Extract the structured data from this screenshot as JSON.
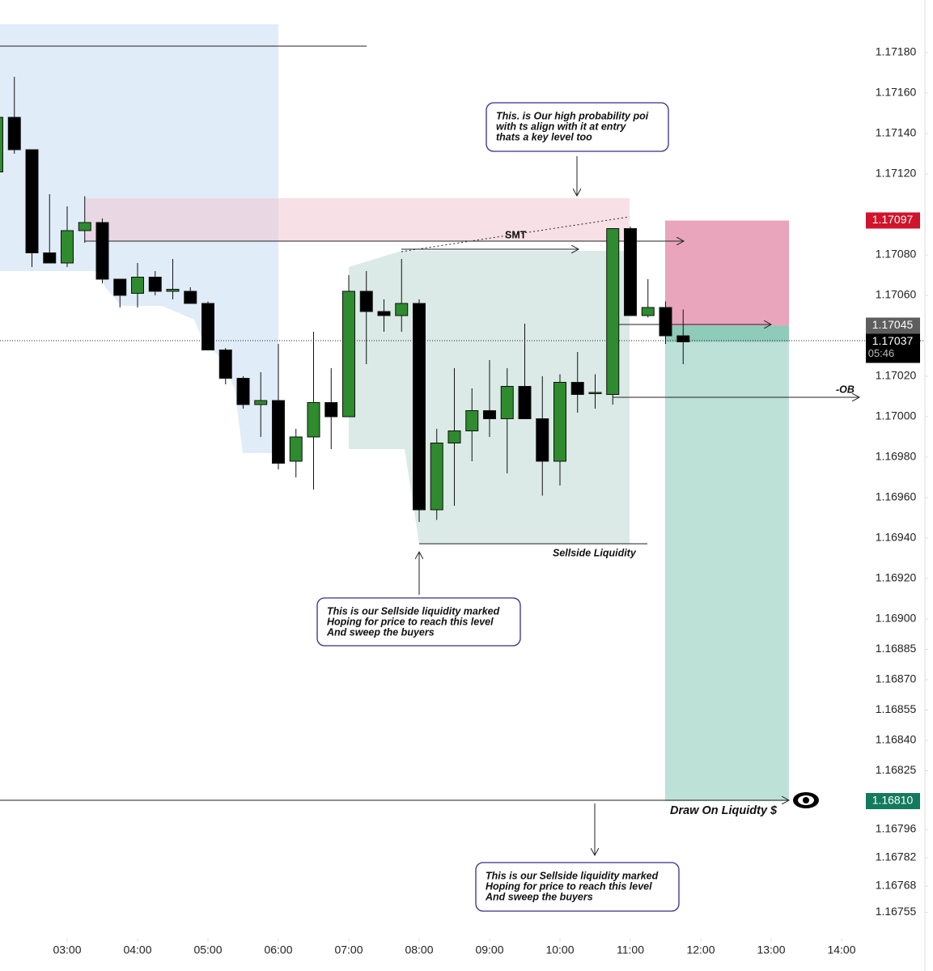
{
  "chart_data": {
    "type": "candlestick",
    "x": [
      2,
      2.25,
      2.5,
      2.75,
      3,
      3.25,
      3.5,
      3.75,
      4,
      4.25,
      4.5,
      4.75,
      5,
      5.25,
      5.5,
      5.75,
      6,
      6.25,
      6.5,
      6.75,
      7,
      7.25,
      7.5,
      7.75,
      8,
      8.25,
      8.5,
      8.75,
      9,
      9.25,
      9.5,
      9.75,
      10,
      10.25,
      10.5,
      10.75,
      11,
      11.25,
      11.5,
      11.75
    ],
    "open": [
      1.17121,
      1.17148,
      1.17132,
      1.17081,
      1.17076,
      1.17092,
      1.17096,
      1.17068,
      1.17061,
      1.17069,
      1.17062,
      1.17062,
      1.17056,
      1.17033,
      1.17019,
      1.17006,
      1.17008,
      1.16978,
      1.1699,
      1.17007,
      1.17,
      1.17062,
      1.17052,
      1.1705,
      1.17056,
      1.16954,
      1.16987,
      1.16993,
      1.17003,
      1.16999,
      1.17015,
      1.16999,
      1.16978,
      1.17017,
      1.17012,
      1.17011,
      1.17093,
      1.1705,
      1.17054,
      1.1704
    ],
    "high": [
      1.1715,
      1.17168,
      1.17132,
      1.1711,
      1.17104,
      1.17109,
      1.17098,
      1.17068,
      1.17076,
      1.17072,
      1.17078,
      1.17064,
      1.17057,
      1.17034,
      1.1702,
      1.17022,
      1.17036,
      1.16994,
      1.17042,
      1.17024,
      1.1707,
      1.17072,
      1.17058,
      1.17078,
      1.17058,
      1.16994,
      1.17024,
      1.17014,
      1.17028,
      1.17024,
      1.17046,
      1.1702,
      1.17021,
      1.17032,
      1.17021,
      1.17093,
      1.17094,
      1.17068,
      1.17057,
      1.17053
    ],
    "low": [
      1.17121,
      1.1713,
      1.17074,
      1.17076,
      1.17074,
      1.17086,
      1.17066,
      1.17054,
      1.17054,
      1.1706,
      1.17058,
      1.17056,
      1.17033,
      1.17016,
      1.17004,
      1.1699,
      1.16974,
      1.1697,
      1.16964,
      1.16984,
      1.17,
      1.17026,
      1.17042,
      1.17042,
      1.16948,
      1.16949,
      1.16956,
      1.16978,
      1.1699,
      1.16972,
      1.16999,
      1.16961,
      1.16966,
      1.17002,
      1.17004,
      1.17006,
      1.1705,
      1.17049,
      1.17036,
      1.17026
    ],
    "close": [
      1.17148,
      1.17132,
      1.17081,
      1.17076,
      1.17092,
      1.17096,
      1.17068,
      1.1706,
      1.17069,
      1.17062,
      1.17063,
      1.17056,
      1.17033,
      1.17019,
      1.17006,
      1.17008,
      1.16977,
      1.1699,
      1.17007,
      1.17,
      1.17062,
      1.17052,
      1.1705,
      1.17056,
      1.16954,
      1.16987,
      1.16993,
      1.17003,
      1.16999,
      1.17015,
      1.16999,
      1.16978,
      1.17017,
      1.17011,
      1.17012,
      1.17093,
      1.1705,
      1.17054,
      1.1704,
      1.17037
    ],
    "up_color": "#2e8b2e",
    "down_color": "#000000",
    "xlim": [
      2.046,
      15.184
    ],
    "xticks": [
      {
        "value": 3,
        "label": "03:00"
      },
      {
        "value": 4,
        "label": "04:00"
      },
      {
        "value": 5,
        "label": "05:00"
      },
      {
        "value": 6,
        "label": "06:00"
      },
      {
        "value": 7,
        "label": "07:00"
      },
      {
        "value": 8,
        "label": "08:00"
      },
      {
        "value": 9,
        "label": "09:00"
      },
      {
        "value": 10,
        "label": "10:00"
      },
      {
        "value": 11,
        "label": "11:00"
      },
      {
        "value": 12,
        "label": "12:00"
      },
      {
        "value": 13,
        "label": "13:00"
      },
      {
        "value": 14,
        "label": "14:00"
      }
    ],
    "ylim": [
      1.16742,
      1.17194
    ],
    "yticks": [
      {
        "value": 1.1718,
        "label": "1.17180"
      },
      {
        "value": 1.1716,
        "label": "1.17160"
      },
      {
        "value": 1.1714,
        "label": "1.17140"
      },
      {
        "value": 1.1712,
        "label": "1.17120"
      },
      {
        "value": 1.1708,
        "label": "1.17080"
      },
      {
        "value": 1.1706,
        "label": "1.17060"
      },
      {
        "value": 1.1702,
        "label": "1.17020"
      },
      {
        "value": 1.17,
        "label": "1.17000"
      },
      {
        "value": 1.1698,
        "label": "1.16980"
      },
      {
        "value": 1.1696,
        "label": "1.16960"
      },
      {
        "value": 1.1694,
        "label": "1.16940"
      },
      {
        "value": 1.1692,
        "label": "1.16920"
      },
      {
        "value": 1.169,
        "label": "1.16900"
      },
      1.16885,
      {
        "value": 1.1687,
        "label": "1.16870"
      },
      1.16855,
      {
        "value": 1.1684,
        "label": "1.16840"
      },
      1.16825,
      1.16796,
      1.16782,
      1.16768,
      1.16755
    ],
    "price_labels": [
      {
        "value": 1.17097,
        "color": "#d0142c"
      },
      {
        "value": 1.17045,
        "color": "#5e5e5e"
      },
      {
        "value": 1.17037,
        "color": "#000000",
        "countdown": "05:46"
      },
      {
        "value": 1.1681,
        "label": "1.16810",
        "color": "#137a5e"
      }
    ],
    "annotations": {
      "poi_note": [
        "This. is Our high probability poi",
        "with ts align with it at entry",
        "thats a key level too"
      ],
      "smt": "SMT",
      "ob": "-OB",
      "sellside": "Sellside Liquidity",
      "sellside_note": [
        "This is our Sellside liquidity marked",
        "Hoping for price to reach this level",
        "And sweep the buyers"
      ],
      "target_note": [
        "This is our Sellside liquidity marked",
        "Hoping for price to reach this level",
        "And sweep the buyers"
      ],
      "draw_on_liquidity": "Draw On Liquidty $"
    }
  }
}
